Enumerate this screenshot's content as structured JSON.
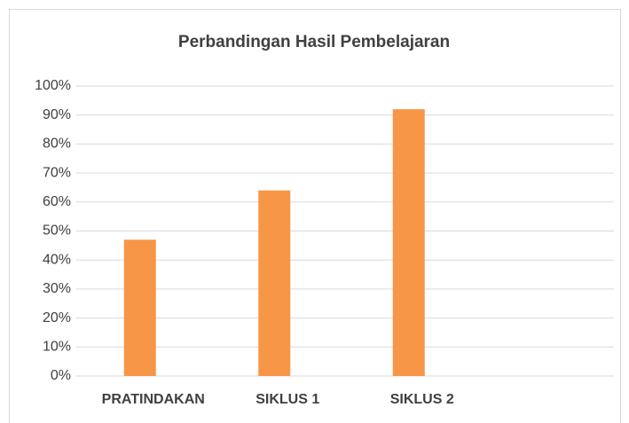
{
  "chart_data": {
    "type": "bar",
    "title": "Perbandingan Hasil Pembelajaran",
    "categories": [
      "PRATINDAKAN",
      "SIKLUS 1",
      "SIKLUS 2",
      null
    ],
    "values": [
      47,
      64,
      92,
      null
    ],
    "color": "#f79646",
    "ylim": [
      0,
      100
    ],
    "yticks": [
      {
        "value": 0,
        "label": "0%"
      },
      {
        "value": 10,
        "label": "10%"
      },
      {
        "value": 20,
        "label": "20%"
      },
      {
        "value": 30,
        "label": "30%"
      },
      {
        "value": 40,
        "label": "40%"
      },
      {
        "value": 50,
        "label": "50%"
      },
      {
        "value": 60,
        "label": "60%"
      },
      {
        "value": 70,
        "label": "70%"
      },
      {
        "value": 80,
        "label": "80%"
      },
      {
        "value": 90,
        "label": "90%"
      },
      {
        "value": 100,
        "label": "100%"
      }
    ],
    "grid": true
  }
}
